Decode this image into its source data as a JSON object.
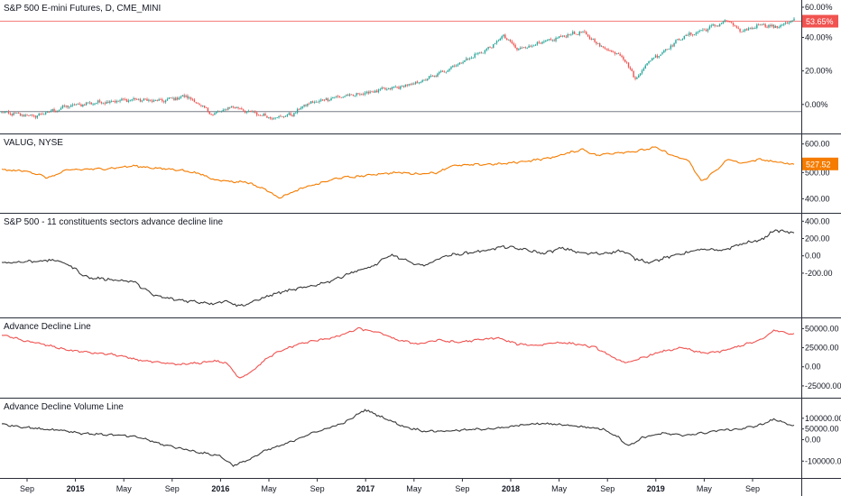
{
  "colors": {
    "up": "#26a69a",
    "down": "#ef5350",
    "orange": "#f57c00",
    "dark": "#3a3a3a",
    "red": "#ef5350",
    "marker_red": "#f05350",
    "marker_orange": "#f57c00"
  },
  "x_axis": {
    "labels": [
      "Sep",
      "2015",
      "May",
      "Sep",
      "2016",
      "May",
      "Sep",
      "2017",
      "May",
      "Sep",
      "2018",
      "May",
      "Sep",
      "2019",
      "May",
      "Sep"
    ],
    "major": [
      "2015",
      "2016",
      "2017",
      "2018",
      "2019"
    ]
  },
  "chart_data": [
    {
      "type": "candlestick",
      "title": "S&P 500 E-mini Futures, D, CME_MINI",
      "yticks": [
        "60.00%",
        "40.00%",
        "20.00%",
        "0.00%"
      ],
      "ylim": [
        -9,
        62
      ],
      "last_value_label": "53.65%",
      "last_value": 53.65,
      "anchors": [
        [
          0,
          -1
        ],
        [
          5,
          -3
        ],
        [
          10,
          3
        ],
        [
          14,
          5
        ],
        [
          20,
          7
        ],
        [
          24,
          6
        ],
        [
          28,
          9
        ],
        [
          32,
          -2
        ],
        [
          35,
          3
        ],
        [
          37,
          0
        ],
        [
          41,
          -4
        ],
        [
          44,
          -2
        ],
        [
          46,
          4
        ],
        [
          50,
          8
        ],
        [
          54,
          10
        ],
        [
          58,
          13
        ],
        [
          61,
          15
        ],
        [
          63,
          17
        ],
        [
          66,
          22
        ],
        [
          69,
          28
        ],
        [
          72,
          34
        ],
        [
          74,
          38
        ],
        [
          76,
          45
        ],
        [
          78,
          37
        ],
        [
          80,
          39
        ],
        [
          83,
          42
        ],
        [
          86,
          46
        ],
        [
          88,
          47
        ],
        [
          91,
          38
        ],
        [
          94,
          33
        ],
        [
          96,
          19
        ],
        [
          98,
          30
        ],
        [
          100,
          35
        ],
        [
          103,
          44
        ],
        [
          106,
          48
        ],
        [
          108,
          51
        ],
        [
          110,
          54
        ],
        [
          112,
          47
        ],
        [
          115,
          52
        ],
        [
          117,
          50
        ],
        [
          120,
          54
        ]
      ]
    },
    {
      "type": "line",
      "title": "VALUG, NYSE",
      "yticks": [
        "600.00",
        "500.00",
        "400.00"
      ],
      "ylim": [
        370,
        612
      ],
      "last_value_label": "527.52",
      "last_value": 527.52,
      "anchors": [
        [
          0,
          505
        ],
        [
          4,
          500
        ],
        [
          7,
          475
        ],
        [
          10,
          505
        ],
        [
          16,
          510
        ],
        [
          20,
          520
        ],
        [
          24,
          510
        ],
        [
          27,
          505
        ],
        [
          30,
          490
        ],
        [
          32,
          470
        ],
        [
          35,
          460
        ],
        [
          37,
          460
        ],
        [
          40,
          430
        ],
        [
          42,
          400
        ],
        [
          44,
          420
        ],
        [
          46,
          440
        ],
        [
          49,
          460
        ],
        [
          51,
          475
        ],
        [
          54,
          480
        ],
        [
          57,
          490
        ],
        [
          60,
          495
        ],
        [
          63,
          490
        ],
        [
          66,
          495
        ],
        [
          68,
          520
        ],
        [
          72,
          525
        ],
        [
          76,
          528
        ],
        [
          80,
          540
        ],
        [
          83,
          550
        ],
        [
          86,
          570
        ],
        [
          88,
          583
        ],
        [
          90,
          560
        ],
        [
          93,
          570
        ],
        [
          96,
          575
        ],
        [
          99,
          590
        ],
        [
          102,
          555
        ],
        [
          104,
          540
        ],
        [
          106,
          460
        ],
        [
          108,
          500
        ],
        [
          110,
          545
        ],
        [
          112,
          530
        ],
        [
          115,
          545
        ],
        [
          117,
          535
        ],
        [
          120,
          527
        ]
      ]
    },
    {
      "type": "line",
      "title": "S&P 500 - 11 constituents sectors advance decline line",
      "yticks": [
        "400.00",
        "200.00",
        "0.00",
        "-200.00"
      ],
      "ylim": [
        -260,
        400
      ],
      "last_value_label": "",
      "last_value": 320,
      "anchors": [
        [
          0,
          90
        ],
        [
          4,
          100
        ],
        [
          8,
          110
        ],
        [
          10,
          80
        ],
        [
          13,
          -20
        ],
        [
          16,
          -30
        ],
        [
          20,
          -50
        ],
        [
          23,
          -150
        ],
        [
          26,
          -180
        ],
        [
          30,
          -200
        ],
        [
          32,
          -210
        ],
        [
          34,
          -190
        ],
        [
          36,
          -230
        ],
        [
          38,
          -200
        ],
        [
          40,
          -160
        ],
        [
          42,
          -130
        ],
        [
          44,
          -110
        ],
        [
          47,
          -80
        ],
        [
          50,
          -40
        ],
        [
          53,
          20
        ],
        [
          56,
          60
        ],
        [
          59,
          150
        ],
        [
          62,
          90
        ],
        [
          64,
          70
        ],
        [
          67,
          140
        ],
        [
          70,
          160
        ],
        [
          73,
          180
        ],
        [
          76,
          210
        ],
        [
          79,
          190
        ],
        [
          82,
          160
        ],
        [
          85,
          200
        ],
        [
          88,
          160
        ],
        [
          91,
          160
        ],
        [
          94,
          180
        ],
        [
          96,
          120
        ],
        [
          98,
          95
        ],
        [
          100,
          120
        ],
        [
          103,
          160
        ],
        [
          106,
          190
        ],
        [
          109,
          180
        ],
        [
          112,
          230
        ],
        [
          115,
          260
        ],
        [
          117,
          330
        ],
        [
          119,
          320
        ],
        [
          120,
          310
        ]
      ]
    },
    {
      "type": "line",
      "title": "Advance Decline Line",
      "yticks": [
        "50000.00",
        "25000.00",
        "0.00",
        "-25000.00"
      ],
      "ylim": [
        -31000,
        54000
      ],
      "last_value_label": "",
      "last_value": 45000,
      "anchors": [
        [
          0,
          42000
        ],
        [
          3,
          35000
        ],
        [
          7,
          28000
        ],
        [
          10,
          22000
        ],
        [
          14,
          18000
        ],
        [
          17,
          16000
        ],
        [
          20,
          10000
        ],
        [
          24,
          5000
        ],
        [
          27,
          3000
        ],
        [
          30,
          5000
        ],
        [
          32,
          8000
        ],
        [
          34,
          5000
        ],
        [
          36,
          -15000
        ],
        [
          38,
          -5000
        ],
        [
          40,
          10000
        ],
        [
          42,
          20000
        ],
        [
          45,
          30000
        ],
        [
          48,
          35000
        ],
        [
          51,
          40000
        ],
        [
          54,
          50000
        ],
        [
          57,
          45000
        ],
        [
          60,
          35000
        ],
        [
          63,
          30000
        ],
        [
          66,
          35000
        ],
        [
          69,
          32000
        ],
        [
          72,
          35000
        ],
        [
          75,
          38000
        ],
        [
          78,
          30000
        ],
        [
          81,
          28000
        ],
        [
          84,
          32000
        ],
        [
          87,
          30000
        ],
        [
          90,
          25000
        ],
        [
          93,
          10000
        ],
        [
          95,
          5000
        ],
        [
          97,
          12000
        ],
        [
          100,
          20000
        ],
        [
          103,
          25000
        ],
        [
          106,
          18000
        ],
        [
          109,
          20000
        ],
        [
          112,
          28000
        ],
        [
          115,
          35000
        ],
        [
          117,
          48000
        ],
        [
          119,
          44000
        ],
        [
          120,
          43000
        ]
      ]
    },
    {
      "type": "line",
      "title": "Advance Decline Volume Line",
      "yticks": [
        "100000.00",
        "50000.00",
        "0.00",
        "-100000.00"
      ],
      "ylim": [
        -145000,
        158000
      ],
      "last_value_label": "",
      "last_value": 68000,
      "anchors": [
        [
          0,
          72000
        ],
        [
          3,
          60000
        ],
        [
          6,
          50000
        ],
        [
          9,
          45000
        ],
        [
          12,
          30000
        ],
        [
          15,
          25000
        ],
        [
          18,
          20000
        ],
        [
          21,
          10000
        ],
        [
          24,
          -20000
        ],
        [
          27,
          -40000
        ],
        [
          30,
          -60000
        ],
        [
          33,
          -75000
        ],
        [
          35,
          -120000
        ],
        [
          37,
          -100000
        ],
        [
          40,
          -50000
        ],
        [
          43,
          -20000
        ],
        [
          46,
          20000
        ],
        [
          49,
          50000
        ],
        [
          52,
          80000
        ],
        [
          55,
          140000
        ],
        [
          58,
          100000
        ],
        [
          61,
          60000
        ],
        [
          64,
          40000
        ],
        [
          67,
          40000
        ],
        [
          70,
          45000
        ],
        [
          73,
          50000
        ],
        [
          76,
          55000
        ],
        [
          79,
          70000
        ],
        [
          82,
          75000
        ],
        [
          85,
          70000
        ],
        [
          88,
          60000
        ],
        [
          91,
          50000
        ],
        [
          93,
          20000
        ],
        [
          95,
          -30000
        ],
        [
          97,
          10000
        ],
        [
          100,
          30000
        ],
        [
          103,
          20000
        ],
        [
          106,
          30000
        ],
        [
          109,
          45000
        ],
        [
          112,
          50000
        ],
        [
          115,
          70000
        ],
        [
          117,
          95000
        ],
        [
          119,
          75000
        ],
        [
          120,
          65000
        ]
      ]
    }
  ]
}
